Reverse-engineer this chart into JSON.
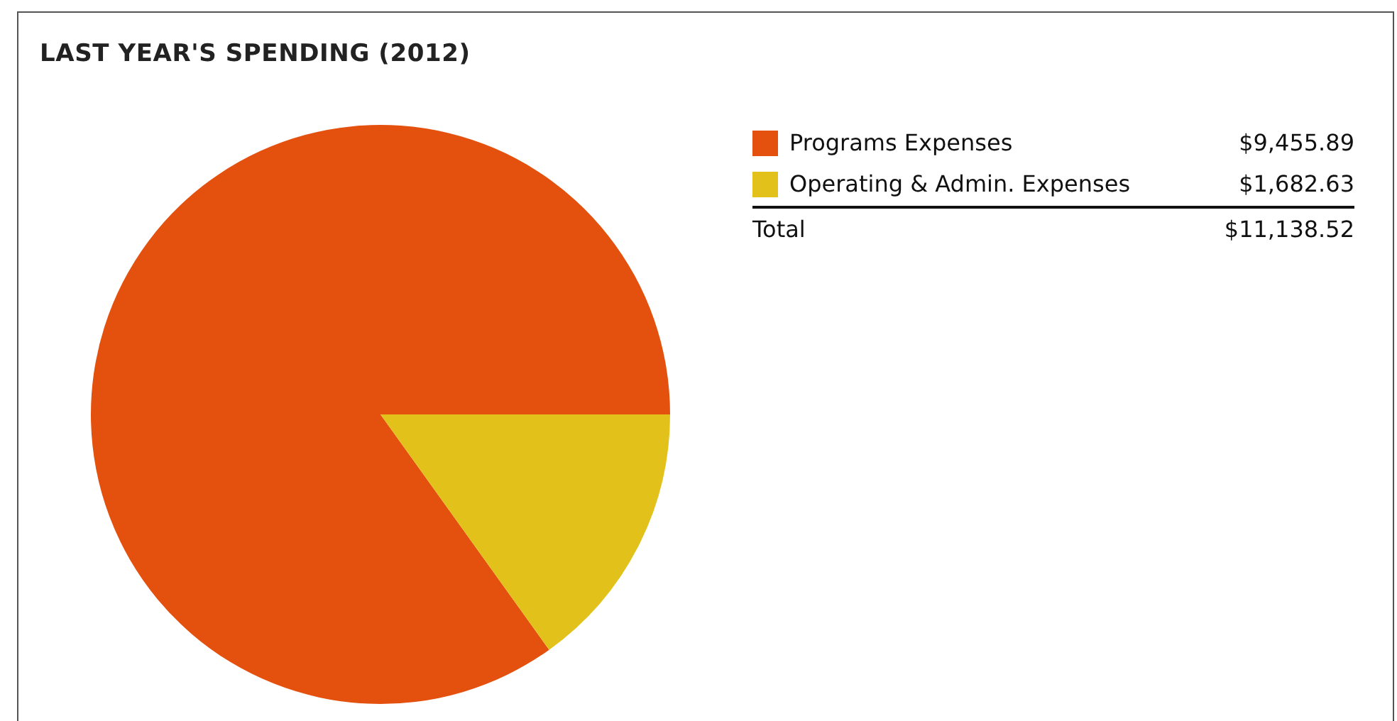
{
  "chart_data": {
    "type": "pie",
    "title": "LAST YEAR'S SPENDING (2012)",
    "categories": [
      "Programs Expenses",
      "Operating & Admin. Expenses"
    ],
    "values": [
      9455.89,
      1682.63
    ],
    "colors": [
      "#e4510f",
      "#e2c21a"
    ],
    "value_labels": [
      "$9,455.89",
      "$1,682.63"
    ],
    "legend": "top right",
    "annotations": [
      "Total",
      "$11,138.52"
    ]
  }
}
